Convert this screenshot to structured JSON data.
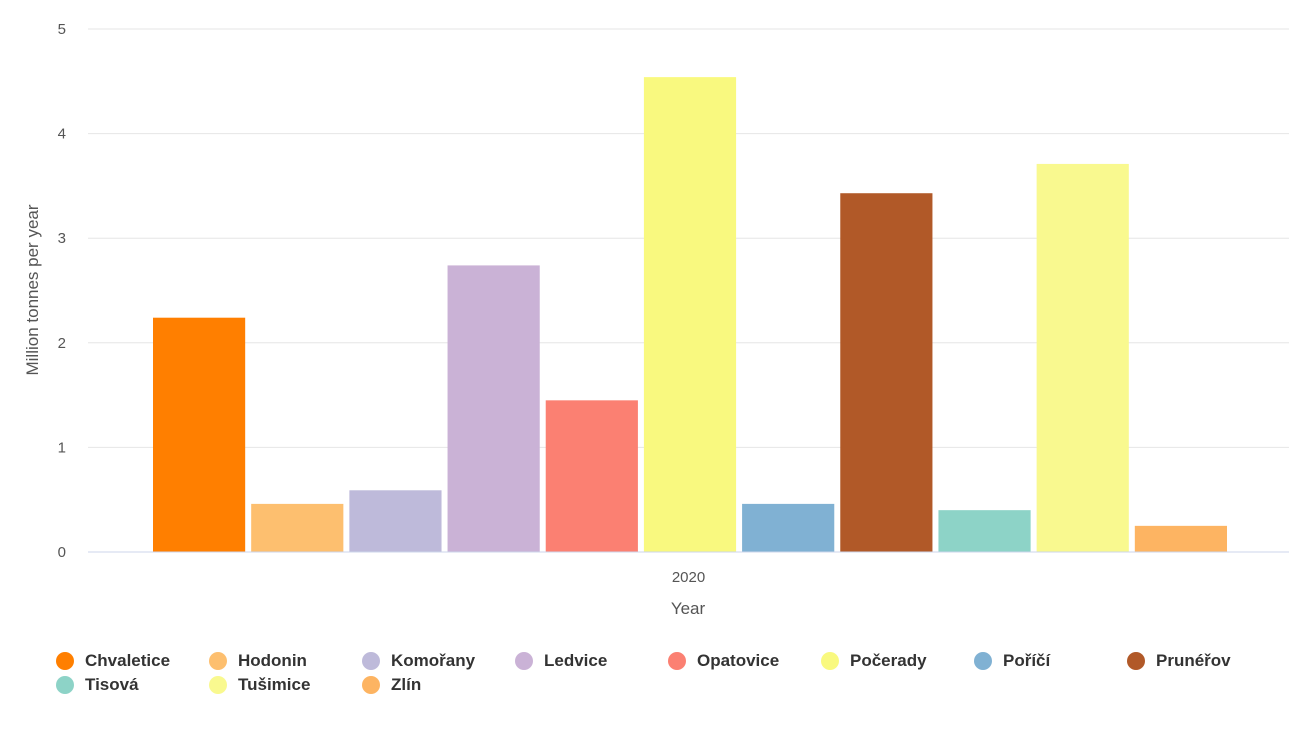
{
  "chart_data": {
    "type": "bar",
    "categories": [
      "2020"
    ],
    "xlabel": "Year",
    "ylabel": "Million tonnes per year",
    "ylim": [
      0,
      5
    ],
    "yticks": [
      "0",
      "1",
      "2",
      "3",
      "4",
      "5"
    ],
    "grid": true,
    "legend_position": "bottom",
    "series": [
      {
        "name": "Chvaletice",
        "values": [
          2.24
        ],
        "color": "#ff7f00"
      },
      {
        "name": "Hodonin",
        "values": [
          0.46
        ],
        "color": "#fdbf6f"
      },
      {
        "name": "Komořany",
        "values": [
          0.59
        ],
        "color": "#bebada"
      },
      {
        "name": "Ledvice",
        "values": [
          2.74
        ],
        "color": "#cab2d6"
      },
      {
        "name": "Opatovice",
        "values": [
          1.45
        ],
        "color": "#fb8072"
      },
      {
        "name": "Počerady",
        "values": [
          4.54
        ],
        "color": "#f9f97f"
      },
      {
        "name": "Poříčí",
        "values": [
          0.46
        ],
        "color": "#80b1d3"
      },
      {
        "name": "Prunéřov",
        "values": [
          3.43
        ],
        "color": "#b15928"
      },
      {
        "name": "Tisová",
        "values": [
          0.4
        ],
        "color": "#8dd3c7"
      },
      {
        "name": "Tušimice",
        "values": [
          3.71
        ],
        "color": "#f9f98f"
      },
      {
        "name": "Zlín",
        "values": [
          0.25
        ],
        "color": "#fdb462"
      }
    ]
  }
}
